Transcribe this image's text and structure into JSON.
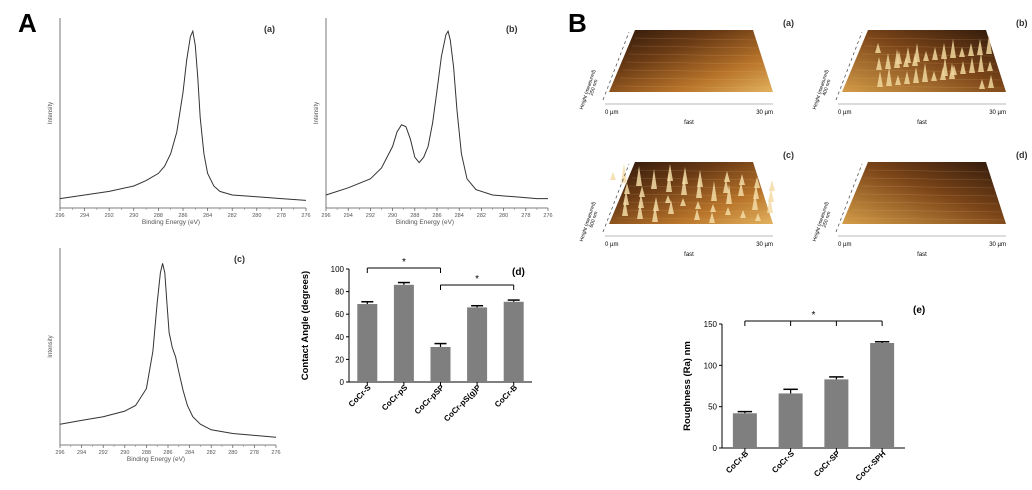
{
  "panel_labels": {
    "A": "A",
    "B": "B"
  },
  "chart_data": [
    {
      "id": "xps_a",
      "type": "line",
      "subplot_label": "(a)",
      "xlabel": "Binding Energy (eV)",
      "ylabel": "Intensity",
      "x_ticks": [
        "296",
        "294",
        "292",
        "290",
        "288",
        "286",
        "284",
        "282",
        "280",
        "278",
        "276"
      ],
      "xlim": [
        296,
        276
      ],
      "x": [
        296,
        294,
        292,
        290,
        289,
        288,
        287.5,
        287,
        286.5,
        286,
        285.7,
        285.4,
        285.2,
        285.0,
        284.8,
        284.6,
        284.3,
        284,
        283.5,
        283,
        282,
        280,
        278,
        276
      ],
      "values": [
        0.03,
        0.05,
        0.07,
        0.1,
        0.13,
        0.17,
        0.21,
        0.28,
        0.4,
        0.62,
        0.8,
        0.93,
        0.96,
        0.88,
        0.7,
        0.48,
        0.28,
        0.17,
        0.1,
        0.07,
        0.05,
        0.04,
        0.03,
        0.02
      ]
    },
    {
      "id": "xps_b",
      "type": "line",
      "subplot_label": "(b)",
      "xlabel": "Binding Energy (eV)",
      "ylabel": "Intensity",
      "x_ticks": [
        "296",
        "294",
        "292",
        "290",
        "288",
        "286",
        "284",
        "282",
        "280",
        "278",
        "276"
      ],
      "xlim": [
        296,
        276
      ],
      "x": [
        296,
        294,
        292,
        291,
        290,
        289.6,
        289.2,
        288.8,
        288.4,
        288,
        287.6,
        287.2,
        286.8,
        286.4,
        286,
        285.6,
        285.2,
        285.0,
        284.8,
        284.5,
        284.2,
        283.8,
        283.3,
        282.5,
        281,
        279,
        277,
        276
      ],
      "values": [
        0.05,
        0.09,
        0.14,
        0.2,
        0.32,
        0.4,
        0.44,
        0.43,
        0.36,
        0.26,
        0.23,
        0.26,
        0.32,
        0.45,
        0.63,
        0.82,
        0.94,
        0.96,
        0.91,
        0.76,
        0.52,
        0.28,
        0.14,
        0.08,
        0.05,
        0.04,
        0.03,
        0.03
      ]
    },
    {
      "id": "xps_c",
      "type": "line",
      "subplot_label": "(c)",
      "xlabel": "Binding Energy (eV)",
      "ylabel": "Intensity",
      "x_ticks": [
        "296",
        "294",
        "292",
        "290",
        "288",
        "286",
        "284",
        "282",
        "280",
        "278",
        "276"
      ],
      "xlim": [
        296,
        276
      ],
      "x": [
        296,
        294,
        292,
        290,
        289,
        288,
        287.4,
        287,
        286.7,
        286.5,
        286.3,
        286.1,
        285.9,
        285.6,
        285.3,
        285,
        284.6,
        284.2,
        283.7,
        283,
        282,
        280,
        278,
        276
      ],
      "values": [
        0.09,
        0.11,
        0.13,
        0.16,
        0.19,
        0.28,
        0.48,
        0.74,
        0.9,
        0.95,
        0.9,
        0.74,
        0.58,
        0.5,
        0.45,
        0.37,
        0.27,
        0.19,
        0.13,
        0.09,
        0.06,
        0.04,
        0.03,
        0.02
      ]
    },
    {
      "id": "contact_angle",
      "type": "bar",
      "subplot_label": "(d)",
      "categories": [
        "CoCr-S",
        "CoCr-pS",
        "CoCr-pSP",
        "CoCr-pS(g)P",
        "CoCr-B"
      ],
      "values": [
        69,
        86,
        31,
        66,
        71
      ],
      "errors": [
        2,
        2,
        3,
        1.5,
        1.5
      ],
      "ylabel": "Contact Angle (degrees)",
      "xlabel": "",
      "ylim": [
        0,
        100
      ],
      "y_ticks": [
        "0",
        "20",
        "40",
        "60",
        "80",
        "100"
      ],
      "significance": [
        "*",
        "*"
      ]
    },
    {
      "id": "roughness",
      "type": "bar",
      "subplot_label": "(e)",
      "categories": [
        "CoCr-B",
        "CoCr-S",
        "CoCr-SP",
        "CoCr-SPH"
      ],
      "values": [
        42,
        66,
        83,
        127
      ],
      "errors": [
        2,
        5,
        3,
        1.5
      ],
      "ylabel": "Roughness (Ra) nm",
      "xlabel": "",
      "ylim": [
        0,
        150
      ],
      "y_ticks": [
        "0",
        "50",
        "100",
        "150"
      ],
      "significance": [
        "*"
      ]
    }
  ],
  "afm_images": [
    {
      "label": "(a)",
      "x_left": "0 µm",
      "x_mid": "fast",
      "x_right": "30 µm",
      "z_label": "Height (measured)",
      "z_scale": "250 nm"
    },
    {
      "label": "(b)",
      "x_left": "0 µm",
      "x_mid": "fast",
      "x_right": "30 µm",
      "z_label": "Height (measured)",
      "z_scale": "400 nm"
    },
    {
      "label": "(c)",
      "x_left": "0 µm",
      "x_mid": "fast",
      "x_right": "30 µm",
      "z_label": "Height (measured)",
      "z_scale": "600 nm"
    },
    {
      "label": "(d)",
      "x_left": "0 µm",
      "x_mid": "fast",
      "x_right": "30 µm",
      "z_label": "Height (measured)",
      "z_scale": "250 nm"
    }
  ]
}
